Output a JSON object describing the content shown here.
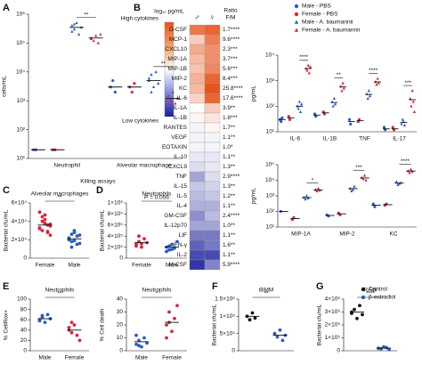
{
  "chart_data": [
    {
      "type": "dot",
      "panel": "A",
      "ylabel": "cells/mL",
      "log": true,
      "ylim": [
        10,
        1000000
      ],
      "yticks": [
        {
          "value": 10,
          "label": "10¹"
        },
        {
          "value": 100,
          "label": "10²"
        },
        {
          "value": 1000,
          "label": "10³"
        },
        {
          "value": 10000,
          "label": "10⁴"
        },
        {
          "value": 100000,
          "label": "10⁵"
        },
        {
          "value": 1000000,
          "label": "10⁶"
        }
      ],
      "categories": [
        "Neutrophil",
        "Alveolar macrophage"
      ],
      "annotations": [
        "**",
        "**"
      ],
      "groups": [
        {
          "color": "#2b5cc4",
          "marker": "circle",
          "points": [
            20,
            20
          ],
          "mean": 20
        },
        {
          "color": "#d7263d",
          "marker": "circle",
          "points": [
            20,
            20
          ],
          "mean": 20
        },
        {
          "color": "#2b5cc4",
          "marker": "triangle",
          "points": [
            400000,
            300000,
            500000,
            200000,
            350000,
            250000,
            450000
          ],
          "mean": 350000
        },
        {
          "color": "#d7263d",
          "marker": "triangle",
          "points": [
            150000,
            120000,
            180000,
            100000,
            200000,
            140000
          ],
          "mean": 150000
        },
        {
          "color": "#2b5cc4",
          "marker": "circle",
          "points": [
            3000,
            5000,
            2000
          ],
          "mean": 3000
        },
        {
          "color": "#d7263d",
          "marker": "circle",
          "points": [
            3000,
            2000,
            4000
          ],
          "mean": 3000
        },
        {
          "color": "#2b5cc4",
          "marker": "triangle",
          "points": [
            5000,
            8000,
            3000,
            10000,
            4000,
            6000,
            2000
          ],
          "mean": 5000
        },
        {
          "color": "#d7263d",
          "marker": "triangle",
          "points": [
            1500,
            1000,
            2000,
            800,
            1200,
            700
          ],
          "mean": 1200
        }
      ]
    },
    {
      "type": "heatmap",
      "panel": "B",
      "colorbar_title": "log₁₀ pg/mL",
      "colorbar_high": "High cytokines",
      "colorbar_low": "Low cytokines",
      "columns": [
        "♂",
        "♀"
      ],
      "ratio_title": [
        "Ratio",
        "F/M"
      ],
      "clim": [
        0,
        4
      ],
      "rows": [
        "G-CSF",
        "MCP-1",
        "CXCL10",
        "MIP-1A",
        "MIP-1B",
        "MIP-2",
        "KC",
        "IL-6",
        "IL-1A",
        "IL-1B",
        "RANTES",
        "VEGF",
        "EOTAXIN",
        "IL-10",
        "CXCL9",
        "TNF",
        "IL-15",
        "IL-5",
        "IL-4",
        "GM-CSF",
        "IL-12p70",
        "LIF",
        "IFN-γ",
        "IL-2",
        "M-CSF"
      ],
      "ratio_labels": [
        "1.7****",
        "9.6****",
        "2.3***",
        "3.7***",
        "5.6***",
        "8.4***",
        "25.8****",
        "17.6****",
        "3.9**",
        "1.8***",
        "1.7**",
        "1.1**",
        "1.0*",
        "1.1**",
        "1.3**",
        "2.9****",
        "1.3**",
        "1.2**",
        "1.1**",
        "2.4****",
        "1.0**",
        "1.1**",
        "1.6**",
        "1.1**",
        "5.9****"
      ],
      "values": [
        [
          3.6,
          3.8
        ],
        [
          2.6,
          3.5
        ],
        [
          3.0,
          3.3
        ],
        [
          2.8,
          3.3
        ],
        [
          2.7,
          3.4
        ],
        [
          2.9,
          3.8
        ],
        [
          2.8,
          4.0
        ],
        [
          2.5,
          3.8
        ],
        [
          2.0,
          2.6
        ],
        [
          2.1,
          2.3
        ],
        [
          1.9,
          2.1
        ],
        [
          1.9,
          1.9
        ],
        [
          1.9,
          1.9
        ],
        [
          1.8,
          1.8
        ],
        [
          1.7,
          1.8
        ],
        [
          1.2,
          1.7
        ],
        [
          1.5,
          1.6
        ],
        [
          1.4,
          1.5
        ],
        [
          1.3,
          1.3
        ],
        [
          1.0,
          1.4
        ],
        [
          1.2,
          1.2
        ],
        [
          0.8,
          0.8
        ],
        [
          0.6,
          0.8
        ],
        [
          0.4,
          0.4
        ],
        [
          0.2,
          0.9
        ]
      ]
    },
    {
      "type": "dot",
      "ylabel": "pg/mL",
      "log": true,
      "ylim": [
        10,
        10000
      ],
      "yticks": [
        {
          "value": 10,
          "label": "10¹"
        },
        {
          "value": 100,
          "label": "10²"
        },
        {
          "value": 1000,
          "label": "10³"
        },
        {
          "value": 10000,
          "label": "10⁴"
        }
      ],
      "categories": [
        "IL-6",
        "IL-1B",
        "TNF",
        "IL-17"
      ],
      "annotations": [
        "****",
        "**",
        "****",
        "***"
      ],
      "groups": [
        {
          "color": "#2b5cc4",
          "marker": "circle",
          "points": [
            30,
            25,
            35
          ],
          "mean": 30
        },
        {
          "color": "#d7263d",
          "marker": "circle",
          "points": [
            40,
            30
          ],
          "mean": 35
        },
        {
          "color": "#2b5cc4",
          "marker": "triangle",
          "points": [
            100,
            80,
            150,
            60,
            120
          ],
          "mean": 100
        },
        {
          "color": "#d7263d",
          "marker": "triangle",
          "points": [
            3000,
            2500,
            4000,
            2000,
            3500
          ],
          "mean": 3000
        },
        {
          "color": "#2b5cc4",
          "marker": "circle",
          "points": [
            50,
            40
          ],
          "mean": 45
        },
        {
          "color": "#d7263d",
          "marker": "circle",
          "points": [
            60,
            50
          ],
          "mean": 55
        },
        {
          "color": "#2b5cc4",
          "marker": "triangle",
          "points": [
            150,
            100,
            200,
            120
          ],
          "mean": 140
        },
        {
          "color": "#d7263d",
          "marker": "triangle",
          "points": [
            600,
            400,
            800,
            500
          ],
          "mean": 570
        },
        {
          "color": "#2b5cc4",
          "marker": "circle",
          "points": [
            30,
            20
          ],
          "mean": 25
        },
        {
          "color": "#d7263d",
          "marker": "circle",
          "points": [
            25,
            30
          ],
          "mean": 27
        },
        {
          "color": "#2b5cc4",
          "marker": "triangle",
          "points": [
            300,
            200,
            400,
            250
          ],
          "mean": 290
        },
        {
          "color": "#d7263d",
          "marker": "triangle",
          "points": [
            900,
            700,
            1200,
            800
          ],
          "mean": 900
        },
        {
          "color": "#2b5cc4",
          "marker": "circle",
          "points": [
            15,
            12
          ],
          "mean": 13
        },
        {
          "color": "#d7263d",
          "marker": "circle",
          "points": [
            15,
            12
          ],
          "mean": 13
        },
        {
          "color": "#2b5cc4",
          "marker": "triangle",
          "points": [
            20,
            30,
            25,
            18
          ],
          "mean": 23
        },
        {
          "color": "#d7263d",
          "marker": "triangle",
          "points": [
            200,
            100,
            400,
            150,
            60
          ],
          "mean": 180
        }
      ]
    },
    {
      "type": "dot",
      "ylabel": "pg/mL",
      "log": true,
      "ylim": [
        10,
        100000
      ],
      "yticks": [
        {
          "value": 10,
          "label": "10¹"
        },
        {
          "value": 100,
          "label": "10²"
        },
        {
          "value": 1000,
          "label": "10³"
        },
        {
          "value": 10000,
          "label": "10⁴"
        },
        {
          "value": 100000,
          "label": "10⁵"
        }
      ],
      "categories": [
        "MIP-1A",
        "MIP-2",
        "KC"
      ],
      "annotations": [
        "*",
        "***",
        "****"
      ],
      "groups": [
        {
          "color": "#2b5cc4",
          "marker": "circle",
          "points": [
            100
          ],
          "mean": 100
        },
        {
          "color": "#d7263d",
          "marker": "circle",
          "points": [
            30,
            40
          ],
          "mean": 35
        },
        {
          "color": "#2b5cc4",
          "marker": "triangle",
          "points": [
            800,
            600,
            1000,
            700
          ],
          "mean": 770
        },
        {
          "color": "#d7263d",
          "marker": "triangle",
          "points": [
            2500,
            2000,
            3000,
            2200
          ],
          "mean": 2400
        },
        {
          "color": "#2b5cc4",
          "marker": "circle",
          "points": [
            60,
            50
          ],
          "mean": 55
        },
        {
          "color": "#d7263d",
          "marker": "circle",
          "points": [
            80,
            60
          ],
          "mean": 70
        },
        {
          "color": "#2b5cc4",
          "marker": "triangle",
          "points": [
            3000,
            2000,
            2500,
            4000
          ],
          "mean": 2900
        },
        {
          "color": "#d7263d",
          "marker": "triangle",
          "points": [
            15000,
            12000,
            20000,
            10000
          ],
          "mean": 14000
        },
        {
          "color": "#2b5cc4",
          "marker": "circle",
          "points": [
            300,
            200
          ],
          "mean": 250
        },
        {
          "color": "#d7263d",
          "marker": "circle",
          "points": [
            250,
            300
          ],
          "mean": 270
        },
        {
          "color": "#2b5cc4",
          "marker": "triangle",
          "points": [
            8000,
            5000,
            6000,
            7000
          ],
          "mean": 6500
        },
        {
          "color": "#d7263d",
          "marker": "triangle",
          "points": [
            40000,
            30000,
            50000,
            35000
          ],
          "mean": 39000
        }
      ]
    },
    {
      "type": "dot",
      "panel": "C",
      "title": "Alveolar macrophages",
      "ylabel": "Bacterial cfu/mL",
      "log": false,
      "ylim": [
        0,
        60000
      ],
      "yticks": [
        0,
        {
          "value": 20000,
          "label": "2×10⁴"
        },
        {
          "value": 40000,
          "label": "4×10⁴"
        },
        {
          "value": 60000,
          "label": "6×10⁴"
        }
      ],
      "categories": [
        "Female",
        "Male"
      ],
      "annotation": "**",
      "groups": [
        {
          "color": "#d7263d",
          "marker": "circle",
          "points": [
            32000,
            45000,
            38000,
            28000,
            35000,
            50000,
            30000,
            42000,
            36000,
            25000,
            33000,
            40000,
            47000,
            29000,
            37000
          ],
          "mean": 36000
        },
        {
          "color": "#2b5cc4",
          "marker": "circle",
          "points": [
            22000,
            18000,
            30000,
            15000,
            25000,
            20000,
            12000,
            28000,
            24000,
            16000,
            21000,
            26000,
            19000
          ],
          "mean": 21000
        }
      ]
    },
    {
      "type": "dot",
      "panel": "D",
      "title": "Neutrophils",
      "ylabel": "Bacterial cfu/mL",
      "log": false,
      "ylim": [
        0,
        1000000
      ],
      "yticks": [
        0,
        {
          "value": 200000,
          "label": "2×10⁵"
        },
        {
          "value": 400000,
          "label": "4×10⁵"
        },
        {
          "value": 600000,
          "label": "6×10⁵"
        },
        {
          "value": 800000,
          "label": "8×10⁵"
        },
        {
          "value": 1000000,
          "label": "1×10⁶"
        }
      ],
      "categories": [
        "Female",
        "Male"
      ],
      "annotation": "P = 0.056",
      "groups": [
        {
          "color": "#d7263d",
          "marker": "circle",
          "points": [
            250000,
            300000,
            200000,
            350000,
            280000,
            220000,
            400000,
            260000
          ],
          "mean": 280000
        },
        {
          "color": "#2b5cc4",
          "marker": "circle",
          "points": [
            200000,
            150000,
            250000,
            180000,
            300000,
            120000,
            220000,
            160000
          ],
          "mean": 200000
        }
      ]
    },
    {
      "type": "dot",
      "panel": "E",
      "title": "Neutrophils",
      "ylabel": "% CellRox+",
      "log": false,
      "ylim": [
        0,
        100
      ],
      "yticks": [
        0,
        20,
        40,
        60,
        80,
        100
      ],
      "categories": [
        "Male",
        "Female"
      ],
      "annotation": "**",
      "groups": [
        {
          "color": "#2b5cc4",
          "marker": "circle",
          "points": [
            60,
            65,
            55,
            70,
            62,
            58,
            68
          ],
          "mean": 62
        },
        {
          "color": "#d7263d",
          "marker": "circle",
          "points": [
            45,
            35,
            50,
            30,
            20,
            40,
            55
          ],
          "mean": 40
        }
      ]
    },
    {
      "type": "dot",
      "title": "Neutrophils",
      "ylabel": "% Cell death",
      "log": false,
      "ylim": [
        0,
        40
      ],
      "yticks": [
        0,
        10,
        20,
        30,
        40
      ],
      "categories": [
        "Male",
        "Female"
      ],
      "annotation": "*",
      "groups": [
        {
          "color": "#2b5cc4",
          "marker": "circle",
          "points": [
            5,
            8,
            3,
            10,
            6,
            12,
            4
          ],
          "mean": 7
        },
        {
          "color": "#d7263d",
          "marker": "circle",
          "points": [
            20,
            30,
            15,
            25,
            35,
            10,
            22
          ],
          "mean": 22
        }
      ]
    },
    {
      "type": "dot",
      "panel": "F",
      "title": "iBMM",
      "ylabel": "Bacterial cfu/mL",
      "log": false,
      "ylim": [
        0,
        1500000
      ],
      "yticks": [
        0,
        {
          "value": 500000,
          "label": "5×10⁵"
        },
        {
          "value": 1000000,
          "label": "1×10⁶"
        },
        {
          "value": 1500000,
          "label": "1.5×10⁶"
        }
      ],
      "categories": [
        null,
        null
      ],
      "annotation": "**",
      "groups": [
        {
          "color": "#111111",
          "marker": "circle",
          "points": [
            1000000,
            900000,
            1100000,
            950000
          ],
          "mean": 1000000
        },
        {
          "color": "#2b5cc4",
          "marker": "circle",
          "points": [
            500000,
            400000,
            600000,
            300000,
            450000
          ],
          "mean": 450000
        }
      ]
    },
    {
      "type": "dot",
      "panel": "G",
      "title": "RAW",
      "ylabel": "Bacterial cfu/mL",
      "log": false,
      "ylim": [
        0,
        4000000
      ],
      "yticks": [
        0,
        {
          "value": 1000000,
          "label": "1×10⁶"
        },
        {
          "value": 2000000,
          "label": "2×10⁶"
        },
        {
          "value": 3000000,
          "label": "3×10⁶"
        },
        {
          "value": 4000000,
          "label": "4×10⁶"
        }
      ],
      "categories": [
        null,
        null
      ],
      "annotation": "****",
      "groups": [
        {
          "color": "#111111",
          "marker": "circle",
          "points": [
            2900000,
            3200000,
            2500000,
            3500000,
            2800000,
            3000000
          ],
          "mean": 3000000
        },
        {
          "color": "#2b5cc4",
          "marker": "circle",
          "points": [
            200000,
            150000,
            300000,
            250000,
            100000
          ],
          "mean": 200000
        }
      ]
    }
  ],
  "legend": [
    {
      "name": "Male - PBS",
      "color": "#2b5cc4",
      "marker": "circle"
    },
    {
      "name": "Female - PBS",
      "color": "#d7263d",
      "marker": "circle"
    },
    {
      "name": "Male - A. baumannii",
      "color": "#2b5cc4",
      "marker": "triangle"
    },
    {
      "name": "Female - A. baumannii",
      "color": "#d7263d",
      "marker": "triangle"
    }
  ],
  "legend_cells": [
    {
      "name": "Control",
      "color": "#111111",
      "marker": "circle"
    },
    {
      "name": "β-estradiol",
      "color": "#2b5cc4",
      "marker": "circle"
    }
  ],
  "section_label": "Killing assays"
}
